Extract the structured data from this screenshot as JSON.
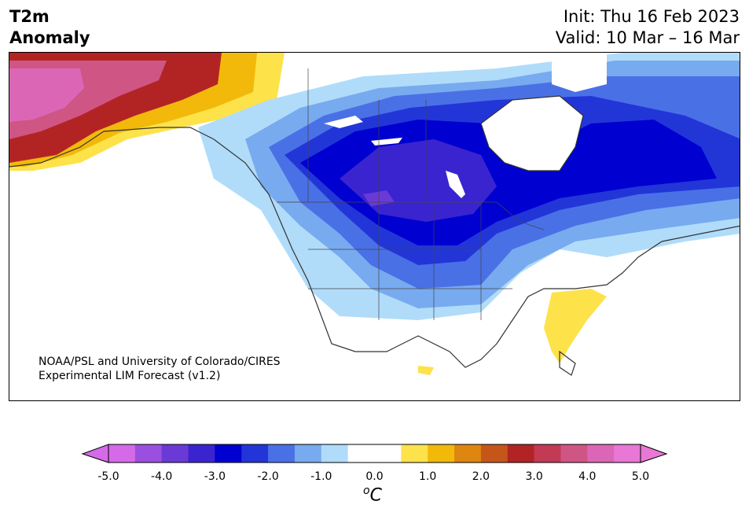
{
  "header": {
    "title_line1": "T2m",
    "title_line2": "Anomaly",
    "init": "Init: Thu 16 Feb 2023",
    "valid": "Valid: 10 Mar – 16 Mar"
  },
  "credit": {
    "line1": "NOAA/PSL and University of Colorado/CIRES",
    "line2": "Experimental LIM Forecast (v1.2)"
  },
  "colorbar": {
    "unit_symbol": "o",
    "unit_letter": "C",
    "ticks": [
      "-5.0",
      "-4.0",
      "-3.0",
      "-2.0",
      "-1.0",
      "0.0",
      "1.0",
      "2.0",
      "3.0",
      "4.0",
      "5.0"
    ],
    "colors": [
      "#d56ae8",
      "#9b4fe0",
      "#6a3ad6",
      "#3a24d0",
      "#0000d0",
      "#2236d8",
      "#4a70e6",
      "#78aaef",
      "#b0dcfa",
      "#ffffff",
      "#ffffff",
      "#fde24a",
      "#f2b90a",
      "#de8610",
      "#c5561a",
      "#b22424",
      "#c33a55",
      "#cf5585",
      "#dc66b6",
      "#e877d6"
    ],
    "extend_low_color": "#d56ae8",
    "extend_high_color": "#e877d6"
  }
}
